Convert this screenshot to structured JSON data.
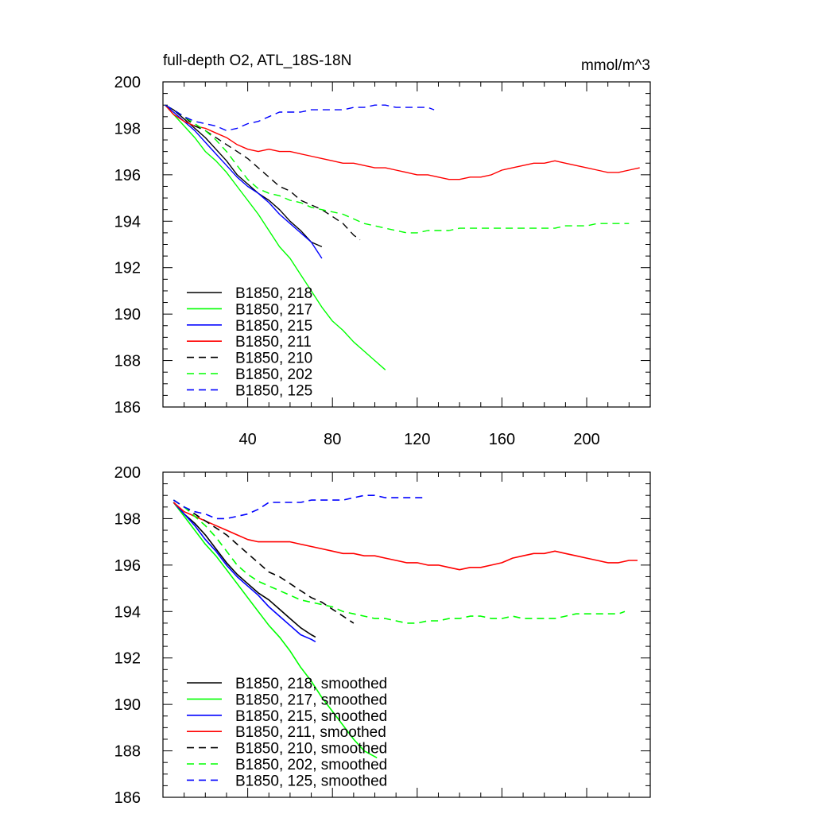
{
  "chart_data": [
    {
      "type": "line",
      "title": "full-depth O2, ATL_18S-18N",
      "units": "mmol/m^3",
      "xlim": [
        0,
        230
      ],
      "ylim": [
        186,
        200
      ],
      "xticks": [
        40,
        80,
        120,
        160,
        200
      ],
      "yticks": [
        186,
        188,
        190,
        192,
        194,
        196,
        198,
        200
      ],
      "series": [
        {
          "name": "B1850, 218",
          "color": "#000000",
          "dash": "solid",
          "x": [
            1,
            5,
            10,
            15,
            20,
            25,
            30,
            35,
            40,
            45,
            50,
            55,
            60,
            65,
            70,
            75
          ],
          "y": [
            199.0,
            198.8,
            198.4,
            198.0,
            197.6,
            197.1,
            196.6,
            196.0,
            195.6,
            195.2,
            194.9,
            194.5,
            194.0,
            193.6,
            193.1,
            192.9
          ]
        },
        {
          "name": "B1850, 217",
          "color": "#00ff00",
          "dash": "solid",
          "x": [
            1,
            5,
            10,
            15,
            20,
            25,
            30,
            35,
            40,
            45,
            50,
            55,
            60,
            65,
            70,
            75,
            80,
            85,
            90,
            95,
            100,
            105
          ],
          "y": [
            199.0,
            198.6,
            198.1,
            197.6,
            197.0,
            196.6,
            196.1,
            195.5,
            194.9,
            194.3,
            193.6,
            192.9,
            192.4,
            191.7,
            191.0,
            190.3,
            189.7,
            189.3,
            188.8,
            188.4,
            188.0,
            187.6
          ]
        },
        {
          "name": "B1850, 215",
          "color": "#0000ff",
          "dash": "solid",
          "x": [
            1,
            5,
            10,
            15,
            20,
            25,
            30,
            35,
            40,
            45,
            50,
            55,
            60,
            65,
            70,
            75
          ],
          "y": [
            199.0,
            198.7,
            198.3,
            197.9,
            197.4,
            196.9,
            196.4,
            195.9,
            195.5,
            195.2,
            194.8,
            194.3,
            193.9,
            193.5,
            193.1,
            192.4
          ]
        },
        {
          "name": "B1850, 211",
          "color": "#ff0000",
          "dash": "solid",
          "x": [
            1,
            5,
            10,
            15,
            20,
            25,
            30,
            35,
            40,
            45,
            50,
            55,
            60,
            65,
            70,
            75,
            80,
            85,
            90,
            95,
            100,
            105,
            110,
            115,
            120,
            125,
            130,
            135,
            140,
            145,
            150,
            155,
            160,
            165,
            170,
            175,
            180,
            185,
            190,
            195,
            200,
            205,
            210,
            215,
            220,
            225
          ],
          "y": [
            199.0,
            198.6,
            198.3,
            198.1,
            198.0,
            197.8,
            197.6,
            197.3,
            197.1,
            197.0,
            197.1,
            197.0,
            197.0,
            196.9,
            196.8,
            196.7,
            196.6,
            196.5,
            196.5,
            196.4,
            196.3,
            196.3,
            196.2,
            196.1,
            196.0,
            196.0,
            195.9,
            195.8,
            195.8,
            195.9,
            195.9,
            196.0,
            196.2,
            196.3,
            196.4,
            196.5,
            196.5,
            196.6,
            196.5,
            196.4,
            196.3,
            196.2,
            196.1,
            196.1,
            196.2,
            196.3
          ]
        },
        {
          "name": "B1850, 210",
          "color": "#000000",
          "dash": "dashed",
          "x": [
            1,
            5,
            10,
            15,
            20,
            25,
            30,
            35,
            40,
            45,
            50,
            55,
            60,
            65,
            70,
            75,
            80,
            85,
            90,
            93
          ],
          "y": [
            199.0,
            198.8,
            198.5,
            198.1,
            197.9,
            197.6,
            197.3,
            197.0,
            196.7,
            196.3,
            195.9,
            195.5,
            195.3,
            194.9,
            194.7,
            194.5,
            194.2,
            193.9,
            193.4,
            193.2
          ]
        },
        {
          "name": "B1850, 202",
          "color": "#00ff00",
          "dash": "dashed",
          "x": [
            1,
            5,
            10,
            15,
            20,
            25,
            30,
            35,
            40,
            45,
            50,
            55,
            60,
            65,
            70,
            75,
            80,
            85,
            90,
            95,
            100,
            105,
            110,
            115,
            120,
            125,
            130,
            135,
            140,
            145,
            150,
            155,
            160,
            165,
            170,
            175,
            180,
            185,
            190,
            195,
            200,
            205,
            210,
            215,
            220
          ],
          "y": [
            199.0,
            198.8,
            198.5,
            198.2,
            197.9,
            197.5,
            197.0,
            196.4,
            195.8,
            195.4,
            195.2,
            195.1,
            194.9,
            194.8,
            194.6,
            194.5,
            194.4,
            194.3,
            194.1,
            193.9,
            193.8,
            193.7,
            193.6,
            193.5,
            193.5,
            193.6,
            193.6,
            193.6,
            193.7,
            193.7,
            193.7,
            193.7,
            193.7,
            193.7,
            193.7,
            193.7,
            193.7,
            193.7,
            193.8,
            193.8,
            193.8,
            193.9,
            193.9,
            193.9,
            193.9
          ]
        },
        {
          "name": "B1850, 125",
          "color": "#0000ff",
          "dash": "dashed",
          "x": [
            1,
            5,
            10,
            15,
            20,
            25,
            30,
            35,
            40,
            45,
            50,
            55,
            60,
            65,
            70,
            75,
            80,
            85,
            90,
            95,
            100,
            105,
            110,
            115,
            120,
            125,
            128
          ],
          "y": [
            199.0,
            198.8,
            198.5,
            198.3,
            198.2,
            198.1,
            197.9,
            198.0,
            198.2,
            198.3,
            198.5,
            198.7,
            198.7,
            198.7,
            198.8,
            198.8,
            198.8,
            198.8,
            198.9,
            198.9,
            199.0,
            199.0,
            198.9,
            198.9,
            198.9,
            198.9,
            198.8
          ]
        }
      ]
    },
    {
      "type": "line",
      "xlim": [
        0,
        230
      ],
      "ylim": [
        186,
        200
      ],
      "yticks": [
        186,
        188,
        190,
        192,
        194,
        196,
        198,
        200
      ],
      "series": [
        {
          "name": "B1850, 218, smoothed",
          "color": "#000000",
          "dash": "solid",
          "x": [
            5,
            10,
            15,
            20,
            25,
            30,
            35,
            40,
            45,
            50,
            55,
            60,
            65,
            70,
            72
          ],
          "y": [
            198.7,
            198.2,
            197.8,
            197.3,
            196.7,
            196.1,
            195.6,
            195.2,
            194.8,
            194.5,
            194.1,
            193.7,
            193.3,
            193.0,
            192.9
          ]
        },
        {
          "name": "B1850, 217, smoothed",
          "color": "#00ff00",
          "dash": "solid",
          "x": [
            5,
            10,
            15,
            20,
            25,
            30,
            35,
            40,
            45,
            50,
            55,
            60,
            65,
            70,
            75,
            80,
            85,
            90,
            95,
            101
          ],
          "y": [
            198.7,
            198.1,
            197.5,
            196.9,
            196.4,
            195.8,
            195.2,
            194.6,
            194.0,
            193.4,
            192.9,
            192.3,
            191.6,
            191.0,
            190.3,
            189.7,
            189.1,
            188.5,
            188.0,
            187.7
          ]
        },
        {
          "name": "B1850, 215, smoothed",
          "color": "#0000ff",
          "dash": "solid",
          "x": [
            5,
            10,
            15,
            20,
            25,
            30,
            35,
            40,
            45,
            50,
            55,
            60,
            65,
            70,
            72
          ],
          "y": [
            198.7,
            198.2,
            197.7,
            197.1,
            196.6,
            196.0,
            195.5,
            195.1,
            194.7,
            194.2,
            193.8,
            193.4,
            193.0,
            192.8,
            192.7
          ]
        },
        {
          "name": "B1850, 211, smoothed",
          "color": "#ff0000",
          "dash": "solid",
          "x": [
            5,
            10,
            15,
            20,
            25,
            30,
            35,
            40,
            45,
            50,
            55,
            60,
            65,
            70,
            75,
            80,
            85,
            90,
            95,
            100,
            105,
            110,
            115,
            120,
            125,
            130,
            135,
            140,
            145,
            150,
            155,
            160,
            165,
            170,
            175,
            180,
            185,
            190,
            195,
            200,
            205,
            210,
            215,
            220,
            224
          ],
          "y": [
            198.7,
            198.3,
            198.1,
            197.9,
            197.7,
            197.5,
            197.3,
            197.1,
            197.0,
            197.0,
            197.0,
            197.0,
            196.9,
            196.8,
            196.7,
            196.6,
            196.5,
            196.5,
            196.4,
            196.4,
            196.3,
            196.2,
            196.1,
            196.1,
            196.0,
            196.0,
            195.9,
            195.8,
            195.9,
            195.9,
            196.0,
            196.1,
            196.3,
            196.4,
            196.5,
            196.5,
            196.6,
            196.5,
            196.4,
            196.3,
            196.2,
            196.1,
            196.1,
            196.2,
            196.2
          ]
        },
        {
          "name": "B1850, 210, smoothed",
          "color": "#000000",
          "dash": "dashed",
          "x": [
            5,
            10,
            15,
            20,
            25,
            30,
            35,
            40,
            45,
            50,
            55,
            60,
            65,
            70,
            75,
            80,
            85,
            90
          ],
          "y": [
            198.8,
            198.5,
            198.2,
            197.9,
            197.6,
            197.3,
            196.9,
            196.5,
            196.1,
            195.7,
            195.5,
            195.2,
            194.9,
            194.6,
            194.4,
            194.1,
            193.8,
            193.5
          ]
        },
        {
          "name": "B1850, 202, smoothed",
          "color": "#00ff00",
          "dash": "dashed",
          "x": [
            5,
            10,
            15,
            20,
            25,
            30,
            35,
            40,
            45,
            50,
            55,
            60,
            65,
            70,
            75,
            80,
            85,
            90,
            95,
            100,
            105,
            110,
            115,
            120,
            125,
            130,
            135,
            140,
            145,
            150,
            155,
            160,
            165,
            170,
            175,
            180,
            185,
            190,
            195,
            200,
            205,
            210,
            215,
            218
          ],
          "y": [
            198.8,
            198.5,
            198.1,
            197.7,
            197.2,
            196.6,
            196.0,
            195.6,
            195.3,
            195.1,
            194.9,
            194.7,
            194.5,
            194.4,
            194.3,
            194.2,
            194.0,
            193.9,
            193.8,
            193.7,
            193.7,
            193.6,
            193.5,
            193.5,
            193.6,
            193.6,
            193.7,
            193.7,
            193.8,
            193.8,
            193.7,
            193.7,
            193.8,
            193.7,
            193.7,
            193.7,
            193.7,
            193.8,
            193.9,
            193.9,
            193.9,
            193.9,
            193.9,
            194.0
          ]
        },
        {
          "name": "B1850, 125, smoothed",
          "color": "#0000ff",
          "dash": "dashed",
          "x": [
            5,
            10,
            15,
            20,
            25,
            30,
            35,
            40,
            45,
            50,
            55,
            60,
            65,
            70,
            75,
            80,
            85,
            90,
            95,
            100,
            105,
            110,
            115,
            120,
            124
          ],
          "y": [
            198.8,
            198.5,
            198.3,
            198.2,
            198.0,
            198.0,
            198.1,
            198.2,
            198.4,
            198.7,
            198.7,
            198.7,
            198.7,
            198.8,
            198.8,
            198.8,
            198.8,
            198.9,
            199.0,
            199.0,
            198.9,
            198.9,
            198.9,
            198.9,
            198.9
          ]
        }
      ]
    }
  ]
}
